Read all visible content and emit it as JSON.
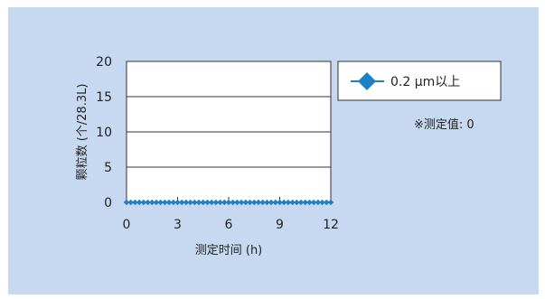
{
  "chart_data": {
    "type": "line",
    "xlabel": "测定时间 (h)",
    "ylabel": "颗粒数 (个/28.3L)",
    "xlim": [
      0,
      12
    ],
    "ylim": [
      0,
      20
    ],
    "xticks": [
      0,
      3,
      6,
      9,
      12
    ],
    "yticks": [
      0,
      5,
      10,
      15,
      20
    ],
    "grid": "horizontal",
    "legend_position": "right",
    "series": [
      {
        "name": "0.2 μm以上",
        "color": "#1f7fc7",
        "marker": "diamond",
        "x": [
          0,
          0.25,
          0.5,
          0.75,
          1,
          1.25,
          1.5,
          1.75,
          2,
          2.25,
          2.5,
          2.75,
          3,
          3.25,
          3.5,
          3.75,
          4,
          4.25,
          4.5,
          4.75,
          5,
          5.25,
          5.5,
          5.75,
          6,
          6.25,
          6.5,
          6.75,
          7,
          7.25,
          7.5,
          7.75,
          8,
          8.25,
          8.5,
          8.75,
          9,
          9.25,
          9.5,
          9.75,
          10,
          10.25,
          10.5,
          10.75,
          11,
          11.25,
          11.5,
          11.75,
          12
        ],
        "values": [
          0,
          0,
          0,
          0,
          0,
          0,
          0,
          0,
          0,
          0,
          0,
          0,
          0,
          0,
          0,
          0,
          0,
          0,
          0,
          0,
          0,
          0,
          0,
          0,
          0,
          0,
          0,
          0,
          0,
          0,
          0,
          0,
          0,
          0,
          0,
          0,
          0,
          0,
          0,
          0,
          0,
          0,
          0,
          0,
          0,
          0,
          0,
          0,
          0
        ]
      }
    ],
    "annotation": "※测定值: 0"
  }
}
